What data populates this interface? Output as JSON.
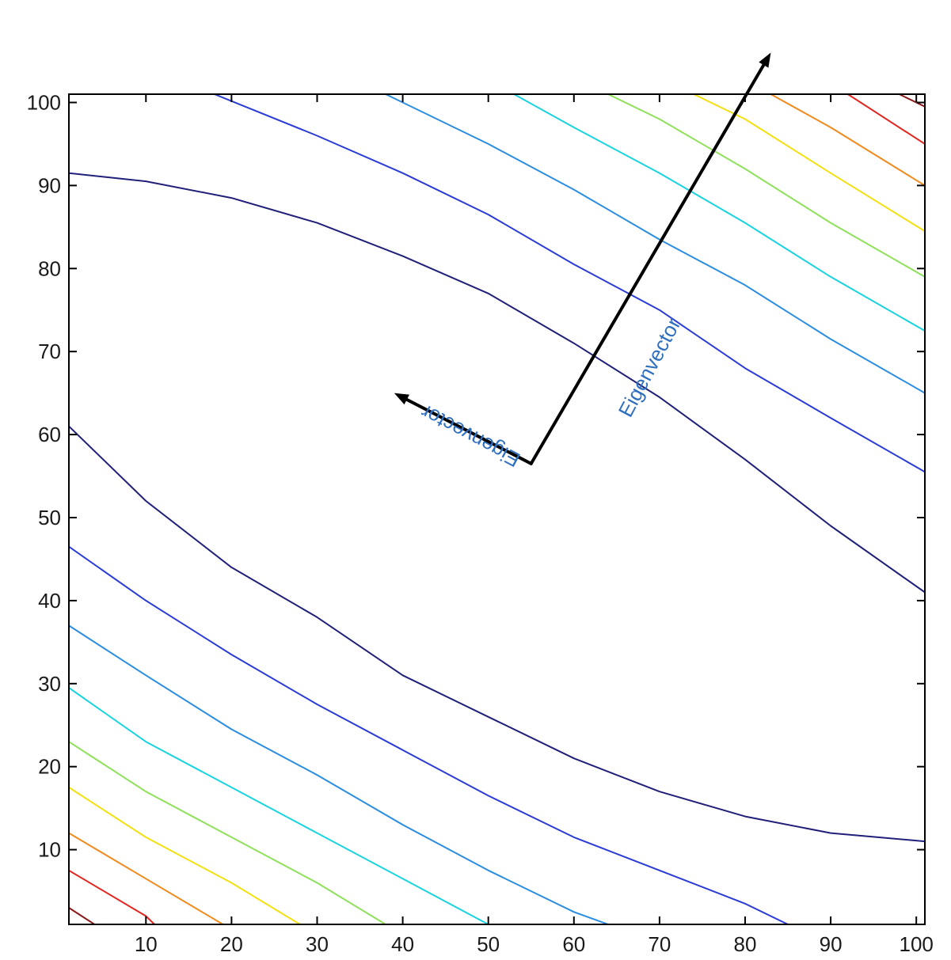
{
  "chart_data": {
    "type": "contour",
    "xlim": [
      1,
      101
    ],
    "ylim": [
      1,
      101
    ],
    "x_ticks": [
      10,
      20,
      30,
      40,
      50,
      60,
      70,
      80,
      90,
      100
    ],
    "y_ticks": [
      10,
      20,
      30,
      40,
      50,
      60,
      70,
      80,
      90,
      100
    ],
    "x_tick_labels": [
      "10",
      "20",
      "30",
      "40",
      "50",
      "60",
      "70",
      "80",
      "90",
      "100"
    ],
    "y_tick_labels": [
      "10",
      "20",
      "30",
      "40",
      "50",
      "60",
      "70",
      "80",
      "90",
      "100"
    ],
    "grid": false,
    "colormap": "jet",
    "contour_center": [
      52,
      51
    ],
    "contours": [
      {
        "color": "#20207a",
        "points": [
          [
            1,
            61
          ],
          [
            10,
            52
          ],
          [
            20,
            44
          ],
          [
            30,
            38
          ],
          [
            40,
            31
          ],
          [
            50,
            26
          ],
          [
            60,
            21
          ],
          [
            70,
            17
          ],
          [
            80,
            14
          ],
          [
            90,
            12
          ],
          [
            101,
            11
          ]
        ]
      },
      {
        "color": "#20207a",
        "points": [
          [
            1,
            91.5
          ],
          [
            10,
            90.5
          ],
          [
            20,
            88.5
          ],
          [
            30,
            85.5
          ],
          [
            40,
            81.5
          ],
          [
            50,
            77
          ],
          [
            60,
            71
          ],
          [
            70,
            64.5
          ],
          [
            80,
            57
          ],
          [
            90,
            49
          ],
          [
            101,
            41
          ]
        ]
      },
      {
        "color": "#2a3bd6",
        "points": [
          [
            1,
            46.5
          ],
          [
            10,
            40
          ],
          [
            20,
            33.5
          ],
          [
            30,
            27.5
          ],
          [
            40,
            22
          ],
          [
            50,
            16.5
          ],
          [
            60,
            11.5
          ],
          [
            70,
            7.5
          ],
          [
            80,
            3.5
          ],
          [
            85,
            1
          ]
        ]
      },
      {
        "color": "#2a3bd6",
        "points": [
          [
            18,
            101
          ],
          [
            30,
            96
          ],
          [
            40,
            91.5
          ],
          [
            50,
            86.5
          ],
          [
            60,
            80.5
          ],
          [
            70,
            75
          ],
          [
            80,
            68
          ],
          [
            90,
            62
          ],
          [
            101,
            55.5
          ]
        ]
      },
      {
        "color": "#2a8de0",
        "points": [
          [
            1,
            37
          ],
          [
            10,
            31
          ],
          [
            20,
            24.5
          ],
          [
            30,
            19
          ],
          [
            40,
            13
          ],
          [
            50,
            7.5
          ],
          [
            60,
            2.5
          ],
          [
            64,
            1
          ]
        ]
      },
      {
        "color": "#2a8de0",
        "points": [
          [
            38,
            101
          ],
          [
            50,
            95
          ],
          [
            60,
            89.5
          ],
          [
            70,
            83.5
          ],
          [
            80,
            78
          ],
          [
            90,
            71.5
          ],
          [
            101,
            65
          ]
        ]
      },
      {
        "color": "#19d4e0",
        "points": [
          [
            1,
            29.5
          ],
          [
            10,
            23
          ],
          [
            20,
            17.5
          ],
          [
            30,
            12
          ],
          [
            40,
            6.5
          ],
          [
            50,
            1
          ]
        ]
      },
      {
        "color": "#19d4e0",
        "points": [
          [
            53,
            101
          ],
          [
            60,
            97
          ],
          [
            70,
            91.5
          ],
          [
            80,
            85.5
          ],
          [
            90,
            79
          ],
          [
            101,
            72.5
          ]
        ]
      },
      {
        "color": "#8fe05a",
        "points": [
          [
            1,
            23
          ],
          [
            10,
            17
          ],
          [
            20,
            11.5
          ],
          [
            30,
            6
          ],
          [
            38,
            1
          ]
        ]
      },
      {
        "color": "#8fe05a",
        "points": [
          [
            64,
            101
          ],
          [
            70,
            98
          ],
          [
            80,
            92
          ],
          [
            90,
            85.5
          ],
          [
            101,
            79
          ]
        ]
      },
      {
        "color": "#f2e011",
        "points": [
          [
            1,
            17.5
          ],
          [
            10,
            11.5
          ],
          [
            20,
            6
          ],
          [
            28,
            1
          ]
        ]
      },
      {
        "color": "#f2e011",
        "points": [
          [
            74,
            101
          ],
          [
            80,
            98
          ],
          [
            90,
            91.5
          ],
          [
            101,
            84.5
          ]
        ]
      },
      {
        "color": "#f08a1e",
        "points": [
          [
            1,
            12
          ],
          [
            10,
            6.5
          ],
          [
            19,
            1
          ]
        ]
      },
      {
        "color": "#f08a1e",
        "points": [
          [
            83,
            101
          ],
          [
            90,
            97
          ],
          [
            101,
            90
          ]
        ]
      },
      {
        "color": "#e0261e",
        "points": [
          [
            1,
            7.5
          ],
          [
            10,
            2
          ],
          [
            11,
            1
          ]
        ]
      },
      {
        "color": "#e0261e",
        "points": [
          [
            92,
            101
          ],
          [
            101,
            95
          ]
        ]
      },
      {
        "color": "#8a1a1a",
        "points": [
          [
            1,
            3
          ],
          [
            4,
            1
          ]
        ]
      },
      {
        "color": "#8a1a1a",
        "points": [
          [
            98,
            101
          ],
          [
            101,
            99.5
          ]
        ]
      }
    ],
    "arrows": [
      {
        "from": [
          55,
          56.5
        ],
        "to": [
          83,
          106
        ]
      },
      {
        "from": [
          55,
          56.5
        ],
        "to": [
          39,
          65
        ]
      }
    ],
    "annotations": [
      {
        "text": "Eigenvector",
        "color": "#2f6fbf",
        "at": [
          69,
          68
        ],
        "angle": -62
      },
      {
        "text": "Eigenvector",
        "color": "#2f6fbf",
        "at": [
          48,
          60
        ],
        "angle": 208
      }
    ]
  }
}
